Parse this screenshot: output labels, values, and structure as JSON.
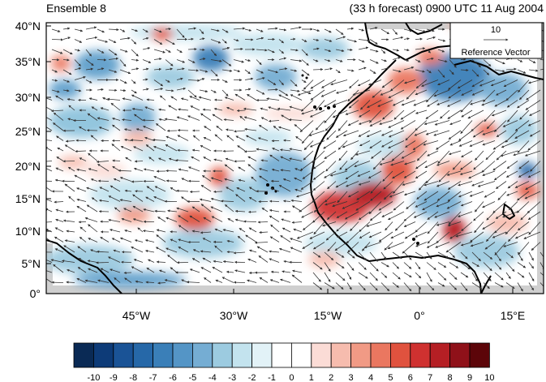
{
  "header": {
    "left_title": "Ensemble 8",
    "right_title": "(33 h forecast) 0900 UTC 11 Aug 2004"
  },
  "axes": {
    "lat_labels": [
      "0°",
      "5°N",
      "10°N",
      "15°N",
      "20°N",
      "25°N",
      "30°N",
      "35°N",
      "40°N"
    ],
    "lon_labels": [
      "45°W",
      "30°W",
      "15°W",
      "0°",
      "15°E"
    ]
  },
  "reference_vector": {
    "value_label": "10",
    "label": "Reference Vector"
  },
  "colorbar": {
    "labels": [
      "-10",
      "-9",
      "-8",
      "-7",
      "-6",
      "-5",
      "-4",
      "-3",
      "-2",
      "-1",
      "0",
      "1",
      "2",
      "3",
      "4",
      "5",
      "6",
      "7",
      "8",
      "9",
      "10"
    ],
    "colors": [
      "#0a2a55",
      "#0d3b78",
      "#1a5396",
      "#2668a8",
      "#3a7fb8",
      "#5495c6",
      "#75add3",
      "#9ccbe0",
      "#c3e3ee",
      "#e2f2f7",
      "#ffffff",
      "#ffffff",
      "#fbdcd6",
      "#f6bcae",
      "#f19a85",
      "#ea7760",
      "#e0523e",
      "#cf3130",
      "#b51f24",
      "#8f1119",
      "#5c0509"
    ]
  }
}
